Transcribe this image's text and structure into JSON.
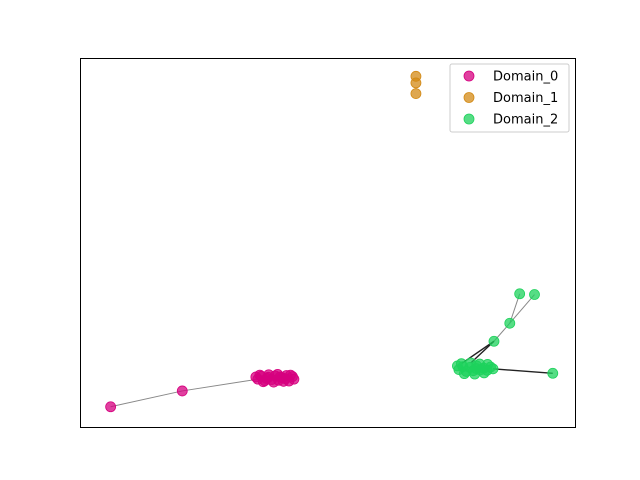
{
  "chart_data": {
    "type": "scatter",
    "title": "",
    "xlabel": "",
    "ylabel": "",
    "axes_visible": false,
    "xlim": [
      0,
      100
    ],
    "ylim": [
      0,
      100
    ],
    "grid": false,
    "legend": {
      "placement": "top-right",
      "entries": [
        "Domain_0",
        "Domain_1",
        "Domain_2"
      ]
    },
    "series": [
      {
        "name": "Domain_0",
        "color": "#d6007f",
        "points": [
          [
            6.0,
            5.5
          ],
          [
            20.5,
            9.8
          ],
          [
            35.8,
            13.0
          ],
          [
            36.5,
            13.8
          ],
          [
            37.2,
            12.6
          ],
          [
            37.9,
            13.5
          ],
          [
            38.6,
            12.9
          ],
          [
            39.3,
            13.9
          ],
          [
            40.0,
            12.7
          ],
          [
            40.7,
            13.4
          ],
          [
            41.4,
            13.1
          ],
          [
            42.1,
            12.5
          ],
          [
            42.8,
            13.7
          ],
          [
            36.2,
            14.1
          ],
          [
            38.0,
            14.2
          ],
          [
            39.8,
            14.3
          ],
          [
            41.6,
            14.0
          ],
          [
            36.9,
            12.3
          ],
          [
            39.0,
            12.2
          ],
          [
            41.0,
            12.4
          ],
          [
            35.4,
            13.6
          ],
          [
            43.1,
            13.0
          ],
          [
            37.6,
            13.2
          ],
          [
            40.3,
            13.6
          ],
          [
            42.4,
            14.1
          ]
        ],
        "edges": [
          [
            0,
            1
          ],
          [
            1,
            2
          ]
        ]
      },
      {
        "name": "Domain_1",
        "color": "#d38a15",
        "points": [
          [
            67.8,
            95.3
          ],
          [
            67.8,
            93.5
          ],
          [
            67.8,
            90.6
          ]
        ],
        "edges": []
      },
      {
        "name": "Domain_2",
        "color": "#1ed25c",
        "points": [
          [
            88.8,
            36.2
          ],
          [
            91.8,
            36.0
          ],
          [
            86.8,
            28.2
          ],
          [
            83.6,
            23.3
          ],
          [
            95.5,
            14.6
          ],
          [
            76.5,
            15.6
          ],
          [
            77.3,
            16.4
          ],
          [
            78.0,
            15.1
          ],
          [
            78.7,
            16.2
          ],
          [
            79.4,
            15.3
          ],
          [
            80.1,
            16.6
          ],
          [
            80.8,
            15.5
          ],
          [
            81.5,
            16.0
          ],
          [
            82.2,
            15.4
          ],
          [
            82.9,
            16.3
          ],
          [
            77.0,
            17.2
          ],
          [
            78.9,
            17.4
          ],
          [
            80.7,
            17.1
          ],
          [
            82.3,
            17.0
          ],
          [
            77.6,
            14.5
          ],
          [
            79.7,
            14.4
          ],
          [
            81.6,
            14.7
          ],
          [
            76.2,
            16.6
          ],
          [
            83.4,
            15.8
          ],
          [
            80.0,
            15.9
          ]
        ],
        "edges": [
          [
            0,
            2
          ],
          [
            1,
            2
          ],
          [
            2,
            3
          ],
          [
            3,
            16
          ],
          [
            3,
            15
          ],
          [
            4,
            23
          ]
        ]
      }
    ]
  }
}
